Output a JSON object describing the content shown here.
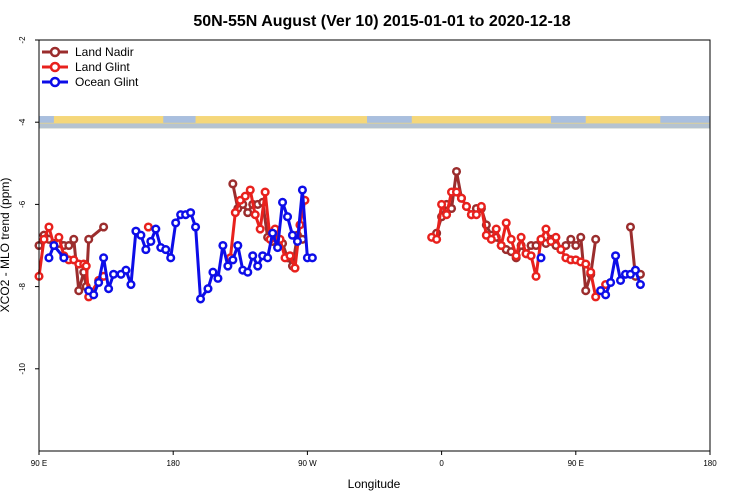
{
  "chart_data": {
    "type": "line",
    "title": "50N-55N August (Ver 10)   2015-01-01 to 2020-12-18",
    "xlabel": "Longitude",
    "ylabel": "XCO2 - MLO trend (ppm)",
    "xlim": [
      -90,
      180
    ],
    "ylim": [
      -12,
      -2
    ],
    "x_ticks": [
      {
        "value": -90,
        "label": "90 E"
      },
      {
        "value": -36,
        "label": "180"
      },
      {
        "value": 18,
        "label": "90 W"
      },
      {
        "value": 72,
        "label": "0"
      },
      {
        "value": 126,
        "label": "90 E"
      },
      {
        "value": 180,
        "label": "180"
      }
    ],
    "y_ticks": [
      {
        "value": -2,
        "label": "-2"
      },
      {
        "value": -4,
        "label": "-4"
      },
      {
        "value": -6,
        "label": "-6"
      },
      {
        "value": -8,
        "label": "-8"
      },
      {
        "value": -10,
        "label": "-10"
      }
    ],
    "grid": false,
    "legend_position": "top-left",
    "land_band": {
      "ymin": -4.15,
      "ymax": -3.85,
      "land_color": "#f5d77a",
      "ocean_color": "#a9bfdf"
    },
    "series": [
      {
        "name": "Land Nadir",
        "color": "#9b2d2d",
        "points": [
          [
            -90,
            -7.0
          ],
          [
            -88,
            -6.75
          ],
          [
            -86,
            -6.85
          ],
          [
            -84,
            -6.95
          ],
          [
            -82,
            -6.95
          ],
          [
            -80,
            -7.0
          ],
          [
            -78,
            -7.0
          ],
          [
            -76,
            -6.85
          ],
          [
            -74,
            -8.1
          ],
          [
            -72,
            -7.65
          ],
          [
            -71,
            -8.0
          ],
          [
            -70,
            -6.85
          ],
          [
            -64,
            -6.55
          ],
          [
            -12,
            -5.5
          ],
          [
            -10,
            -6.1
          ],
          [
            -8,
            -6.0
          ],
          [
            -6,
            -6.2
          ],
          [
            -4,
            -6.0
          ],
          [
            -2,
            -6.0
          ],
          [
            0,
            -5.95
          ],
          [
            2,
            -6.8
          ],
          [
            4,
            -6.9
          ],
          [
            6,
            -6.85
          ],
          [
            8,
            -6.95
          ],
          [
            10,
            -7.3
          ],
          [
            12,
            -7.5
          ],
          [
            14,
            -6.75
          ],
          [
            16,
            -6.85
          ],
          [
            70,
            -6.7
          ],
          [
            72,
            -6.3
          ],
          [
            74,
            -6.0
          ],
          [
            76,
            -6.1
          ],
          [
            78,
            -5.2
          ],
          [
            80,
            -5.85
          ],
          [
            82,
            -6.05
          ],
          [
            84,
            -6.25
          ],
          [
            86,
            -6.1
          ],
          [
            88,
            -6.1
          ],
          [
            90,
            -6.5
          ],
          [
            92,
            -6.75
          ],
          [
            94,
            -6.8
          ],
          [
            96,
            -7.0
          ],
          [
            98,
            -7.1
          ],
          [
            100,
            -7.15
          ],
          [
            102,
            -7.3
          ],
          [
            104,
            -7.0
          ],
          [
            106,
            -7.2
          ],
          [
            108,
            -7.0
          ],
          [
            110,
            -7.0
          ],
          [
            112,
            -6.85
          ],
          [
            114,
            -6.95
          ],
          [
            116,
            -6.85
          ],
          [
            118,
            -7.0
          ],
          [
            120,
            -7.1
          ],
          [
            122,
            -7.0
          ],
          [
            124,
            -6.85
          ],
          [
            126,
            -7.0
          ],
          [
            128,
            -6.8
          ],
          [
            130,
            -8.1
          ],
          [
            132,
            -7.7
          ],
          [
            134,
            -6.85
          ],
          [
            148,
            -6.55
          ],
          [
            150,
            -7.75
          ],
          [
            152,
            -7.7
          ]
        ]
      },
      {
        "name": "Land Glint",
        "color": "#e8211d",
        "points": [
          [
            -90,
            -7.75
          ],
          [
            -88,
            -6.85
          ],
          [
            -86,
            -6.55
          ],
          [
            -84,
            -7.0
          ],
          [
            -82,
            -6.8
          ],
          [
            -80,
            -7.25
          ],
          [
            -78,
            -7.35
          ],
          [
            -76,
            -7.35
          ],
          [
            -74,
            -7.45
          ],
          [
            -72,
            -7.45
          ],
          [
            -71,
            -7.5
          ],
          [
            -70,
            -8.25
          ],
          [
            -66,
            -7.85
          ],
          [
            -64,
            -7.75
          ],
          [
            -46,
            -6.55
          ],
          [
            -13,
            -7.3
          ],
          [
            -11,
            -6.2
          ],
          [
            -9,
            -5.9
          ],
          [
            -7,
            -5.8
          ],
          [
            -5,
            -5.65
          ],
          [
            -3,
            -6.25
          ],
          [
            -1,
            -6.6
          ],
          [
            1,
            -5.7
          ],
          [
            3,
            -6.85
          ],
          [
            5,
            -6.6
          ],
          [
            7,
            -6.85
          ],
          [
            9,
            -7.3
          ],
          [
            11,
            -7.25
          ],
          [
            13,
            -7.55
          ],
          [
            15,
            -6.5
          ],
          [
            17,
            -5.9
          ],
          [
            68,
            -6.8
          ],
          [
            70,
            -6.85
          ],
          [
            72,
            -6.0
          ],
          [
            74,
            -6.25
          ],
          [
            76,
            -5.7
          ],
          [
            78,
            -5.7
          ],
          [
            80,
            -5.85
          ],
          [
            82,
            -6.05
          ],
          [
            84,
            -6.25
          ],
          [
            86,
            -6.25
          ],
          [
            88,
            -6.05
          ],
          [
            90,
            -6.75
          ],
          [
            92,
            -6.85
          ],
          [
            94,
            -6.6
          ],
          [
            96,
            -7.0
          ],
          [
            98,
            -6.45
          ],
          [
            100,
            -6.85
          ],
          [
            102,
            -7.25
          ],
          [
            104,
            -6.8
          ],
          [
            106,
            -7.2
          ],
          [
            108,
            -7.25
          ],
          [
            110,
            -7.75
          ],
          [
            112,
            -6.85
          ],
          [
            114,
            -6.6
          ],
          [
            116,
            -6.9
          ],
          [
            118,
            -6.8
          ],
          [
            120,
            -7.1
          ],
          [
            122,
            -7.3
          ],
          [
            124,
            -7.35
          ],
          [
            126,
            -7.35
          ],
          [
            128,
            -7.4
          ],
          [
            130,
            -7.45
          ],
          [
            132,
            -7.65
          ],
          [
            134,
            -8.25
          ],
          [
            136,
            -8.1
          ],
          [
            138,
            -7.95
          ]
        ]
      },
      {
        "name": "Ocean Glint",
        "color": "#0d0de8",
        "points": [
          [
            -80,
            -7.3
          ],
          [
            -70,
            -8.1
          ],
          [
            -68,
            -8.2
          ],
          [
            -66,
            -7.9
          ],
          [
            -64,
            -7.3
          ],
          [
            -62,
            -8.05
          ],
          [
            -60,
            -7.7
          ],
          [
            -57,
            -7.7
          ],
          [
            -55,
            -7.6
          ],
          [
            -53,
            -7.95
          ],
          [
            -51,
            -6.65
          ],
          [
            -49,
            -6.75
          ],
          [
            -47,
            -7.1
          ],
          [
            -45,
            -6.9
          ],
          [
            -43,
            -6.6
          ],
          [
            -41,
            -7.05
          ],
          [
            -39,
            -7.1
          ],
          [
            -37,
            -7.3
          ],
          [
            -35,
            -6.45
          ],
          [
            -33,
            -6.25
          ],
          [
            -31,
            -6.25
          ],
          [
            -29,
            -6.2
          ],
          [
            -27,
            -6.55
          ],
          [
            -25,
            -8.3
          ],
          [
            -22,
            -8.05
          ],
          [
            -20,
            -7.65
          ],
          [
            -18,
            -7.8
          ],
          [
            -16,
            -7.0
          ],
          [
            -14,
            -7.5
          ],
          [
            -12,
            -7.35
          ],
          [
            -10,
            -7.0
          ],
          [
            -8,
            -7.6
          ],
          [
            -6,
            -7.65
          ],
          [
            -4,
            -7.25
          ],
          [
            -2,
            -7.5
          ],
          [
            0,
            -7.25
          ],
          [
            2,
            -7.3
          ],
          [
            4,
            -6.7
          ],
          [
            6,
            -7.05
          ],
          [
            8,
            -5.95
          ],
          [
            10,
            -6.3
          ],
          [
            12,
            -6.75
          ],
          [
            14,
            -6.9
          ],
          [
            16,
            -5.65
          ],
          [
            18,
            -7.3
          ],
          [
            20,
            -7.3
          ],
          [
            -86,
            -7.3
          ],
          [
            -84,
            -7.0
          ],
          [
            136,
            -8.1
          ],
          [
            138,
            -8.2
          ],
          [
            140,
            -7.9
          ],
          [
            142,
            -7.25
          ],
          [
            144,
            -7.85
          ],
          [
            146,
            -7.7
          ],
          [
            148,
            -7.7
          ],
          [
            150,
            -7.6
          ],
          [
            152,
            -7.95
          ],
          [
            112,
            -7.3
          ]
        ]
      }
    ]
  }
}
